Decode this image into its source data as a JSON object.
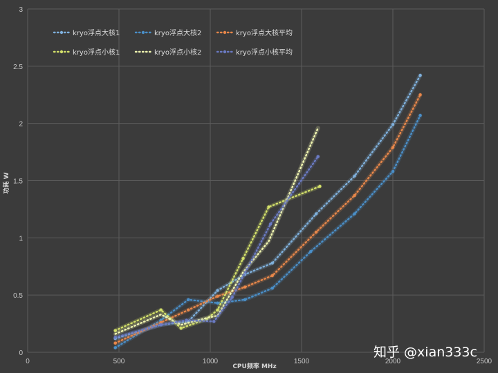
{
  "watermark": "知乎 @xian333c",
  "chart_data": {
    "type": "line",
    "title": "",
    "xlabel": "CPU频率 MHz",
    "ylabel": "功耗 W",
    "xlim": [
      0,
      2500
    ],
    "ylim": [
      0,
      3
    ],
    "xticks": [
      "0",
      "500",
      "1000",
      "1500",
      "2000",
      "2500"
    ],
    "yticks": [
      "0",
      "0.5",
      "1",
      "1.5",
      "2",
      "2.5",
      "3"
    ],
    "grid": true,
    "legend_position": "top-left",
    "series": [
      {
        "name": "kryo浮点大核1",
        "color": "#7fb0dc",
        "marker": true,
        "points": [
          [
            480,
            0.12
          ],
          [
            730,
            0.24
          ],
          [
            880,
            0.27
          ],
          [
            1040,
            0.54
          ],
          [
            1190,
            0.68
          ],
          [
            1340,
            0.78
          ],
          [
            1580,
            1.21
          ],
          [
            1790,
            1.54
          ],
          [
            2000,
            1.99
          ],
          [
            2150,
            2.42
          ]
        ]
      },
      {
        "name": "kryo浮点大核2",
        "color": "#4a8fc8",
        "marker": true,
        "points": [
          [
            480,
            0.04
          ],
          [
            730,
            0.28
          ],
          [
            880,
            0.46
          ],
          [
            1040,
            0.43
          ],
          [
            1190,
            0.46
          ],
          [
            1340,
            0.56
          ],
          [
            1550,
            0.88
          ],
          [
            1790,
            1.21
          ],
          [
            2000,
            1.58
          ],
          [
            2150,
            2.07
          ]
        ]
      },
      {
        "name": "kryo浮点大核平均",
        "color": "#e8874a",
        "marker": true,
        "points": [
          [
            480,
            0.08
          ],
          [
            730,
            0.26
          ],
          [
            880,
            0.37
          ],
          [
            1040,
            0.49
          ],
          [
            1190,
            0.57
          ],
          [
            1340,
            0.67
          ],
          [
            1580,
            1.05
          ],
          [
            1790,
            1.37
          ],
          [
            2000,
            1.79
          ],
          [
            2150,
            2.25
          ]
        ]
      },
      {
        "name": "kryo浮点小核1",
        "color": "#d3e06a",
        "marker": true,
        "points": [
          [
            480,
            0.19
          ],
          [
            730,
            0.37
          ],
          [
            840,
            0.21
          ],
          [
            980,
            0.29
          ],
          [
            1040,
            0.37
          ],
          [
            1180,
            0.82
          ],
          [
            1320,
            1.27
          ],
          [
            1600,
            1.45
          ]
        ]
      },
      {
        "name": "kryo浮点小核2",
        "color": "#f0f5b0",
        "marker": false,
        "points": [
          [
            480,
            0.16
          ],
          [
            730,
            0.33
          ],
          [
            840,
            0.24
          ],
          [
            980,
            0.3
          ],
          [
            1040,
            0.32
          ],
          [
            1180,
            0.7
          ],
          [
            1320,
            0.97
          ],
          [
            1590,
            1.96
          ]
        ]
      },
      {
        "name": "kryo浮点小核平均",
        "color": "#6b7bc4",
        "marker": true,
        "points": [
          [
            480,
            0.13
          ],
          [
            730,
            0.24
          ],
          [
            870,
            0.28
          ],
          [
            1020,
            0.27
          ],
          [
            1120,
            0.48
          ],
          [
            1330,
            1.12
          ],
          [
            1590,
            1.71
          ]
        ]
      }
    ]
  }
}
